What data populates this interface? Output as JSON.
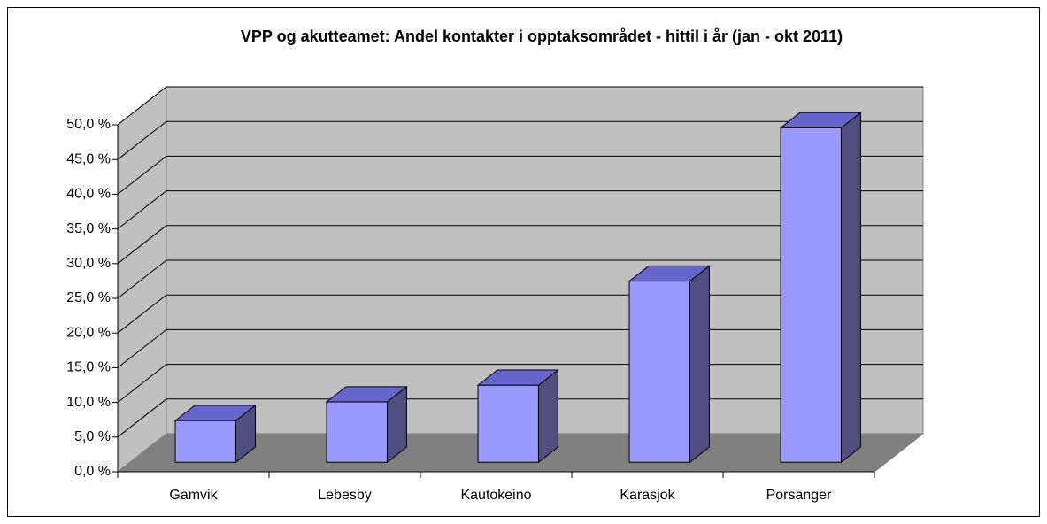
{
  "chart_data": {
    "type": "bar3d",
    "title": "VPP og akutteamet: Andel kontakter i opptaksområdet - hittil i år (jan - okt 2011)",
    "categories": [
      "Gamvik",
      "Lebesby",
      "Kautokeino",
      "Karasjok",
      "Porsanger"
    ],
    "values": [
      6.0,
      8.7,
      11.1,
      26.1,
      48.2
    ],
    "color": "#9999ff",
    "ylim": [
      0,
      50
    ],
    "yticks": [
      {
        "value": 0,
        "label": "0,0 %"
      },
      {
        "value": 5,
        "label": "5,0 %"
      },
      {
        "value": 10,
        "label": "10,0 %"
      },
      {
        "value": 15,
        "label": "15,0 %"
      },
      {
        "value": 20,
        "label": "20,0 %"
      },
      {
        "value": 25,
        "label": "25,0 %"
      },
      {
        "value": 30,
        "label": "30,0 %"
      },
      {
        "value": 35,
        "label": "35,0 %"
      },
      {
        "value": 40,
        "label": "40,0 %"
      },
      {
        "value": 45,
        "label": "45,0 %"
      },
      {
        "value": 50,
        "label": "50,0 %"
      }
    ],
    "grid": true
  }
}
